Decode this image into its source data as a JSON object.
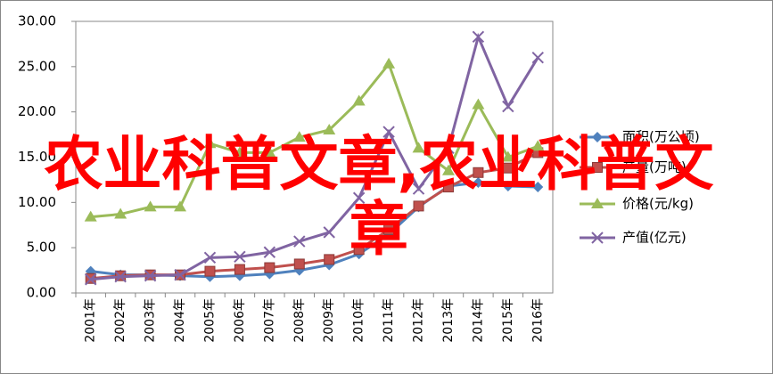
{
  "chart_data": {
    "type": "line",
    "categories": [
      "2001年",
      "2002年",
      "2003年",
      "2004年",
      "2005年",
      "2006年",
      "2007年",
      "2008年",
      "2009年",
      "2010年",
      "2011年",
      "2012年",
      "2013年",
      "2014年",
      "2015年",
      "2016年"
    ],
    "ylim": [
      0,
      30
    ],
    "yticks": [
      {
        "value": 0,
        "label": "0.00"
      },
      {
        "value": 5,
        "label": "5.00"
      },
      {
        "value": 10,
        "label": "10.00"
      },
      {
        "value": 15,
        "label": "15.00"
      },
      {
        "value": 20,
        "label": "20.00"
      },
      {
        "value": 25,
        "label": "25.00"
      },
      {
        "value": 30,
        "label": "30.00"
      }
    ],
    "series": [
      {
        "name": "面积(万公顷)",
        "color": "#4f81bd",
        "marker": "diamond",
        "values": [
          2.4,
          2.0,
          2.0,
          1.9,
          1.8,
          1.9,
          2.1,
          2.5,
          3.1,
          4.3,
          6.5,
          9.5,
          11.8,
          12.2,
          11.8,
          11.7
        ]
      },
      {
        "name": "产量(万吨)",
        "color": "#c0504d",
        "marker": "square",
        "values": [
          1.6,
          1.9,
          2.0,
          2.0,
          2.4,
          2.6,
          2.8,
          3.2,
          3.7,
          4.8,
          7.0,
          9.6,
          11.7,
          13.3,
          13.8,
          15.5
        ]
      },
      {
        "name": "价格(元/kg)",
        "color": "#9bbb59",
        "marker": "triangle",
        "values": [
          8.4,
          8.7,
          9.5,
          9.5,
          16.5,
          15.5,
          15.5,
          17.2,
          18.0,
          21.2,
          25.3,
          16.0,
          13.5,
          20.8,
          15.0,
          16.2
        ]
      },
      {
        "name": "产值(亿元)",
        "color": "#8064a2",
        "marker": "x",
        "values": [
          1.5,
          1.8,
          1.9,
          2.0,
          3.9,
          4.0,
          4.5,
          5.7,
          6.7,
          10.5,
          17.8,
          11.5,
          16.0,
          28.3,
          20.6,
          26.0
        ]
      }
    ],
    "overlay_text": "农业科普文章,农业科普文章"
  }
}
